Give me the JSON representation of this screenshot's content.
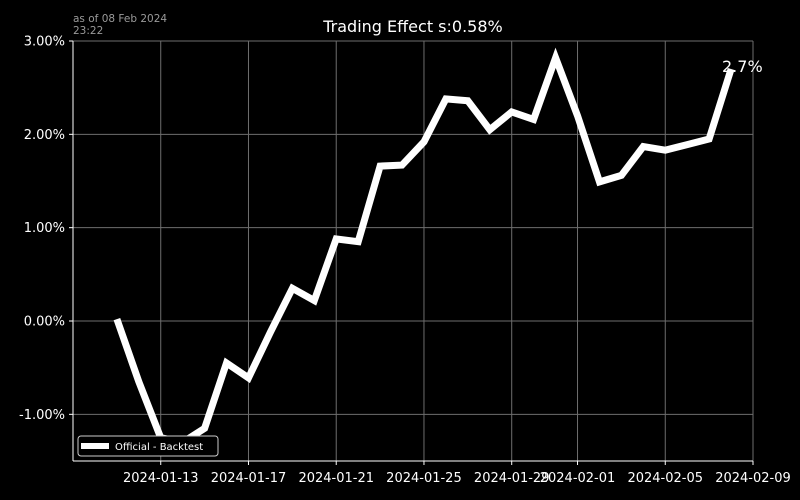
{
  "stamp": {
    "line1": "as of 08 Feb 2024",
    "line2": "23:22"
  },
  "colors": {
    "background": "#000000",
    "line": "#ffffff",
    "grid": "#6e6e6e",
    "text": "#ffffff",
    "stamp": "#9a9a9a"
  },
  "chart_data": {
    "type": "line",
    "title": "Trading Effect s:0.58%",
    "xlabel": "",
    "ylabel": "",
    "xlim": [
      "2024-01-09",
      "2024-02-09"
    ],
    "ylim": [
      -1.5,
      3.0
    ],
    "grid": true,
    "legend_position": "lower-left",
    "y_ticks": [
      {
        "value": -1.0,
        "label": "-1.00%"
      },
      {
        "value": 0.0,
        "label": "0.00%"
      },
      {
        "value": 1.0,
        "label": "1.00%"
      },
      {
        "value": 2.0,
        "label": "2.00%"
      },
      {
        "value": 3.0,
        "label": "3.00%"
      }
    ],
    "x_ticks": [
      {
        "value": "2024-01-13",
        "label": "2024-01-13"
      },
      {
        "value": "2024-01-17",
        "label": "2024-01-17"
      },
      {
        "value": "2024-01-21",
        "label": "2024-01-21"
      },
      {
        "value": "2024-01-25",
        "label": "2024-01-25"
      },
      {
        "value": "2024-01-29",
        "label": "2024-01-29"
      },
      {
        "value": "2024-02-01",
        "label": "2024-02-01"
      },
      {
        "value": "2024-02-05",
        "label": "2024-02-05"
      },
      {
        "value": "2024-02-09",
        "label": "2024-02-09"
      }
    ],
    "series": [
      {
        "name": "Official - Backtest",
        "color": "#ffffff",
        "points": [
          {
            "x": "2024-01-11",
            "y": 0.02
          },
          {
            "x": "2024-01-12",
            "y": -0.65
          },
          {
            "x": "2024-01-13",
            "y": -1.25
          },
          {
            "x": "2024-01-14",
            "y": -1.3
          },
          {
            "x": "2024-01-15",
            "y": -1.15
          },
          {
            "x": "2024-01-16",
            "y": -0.45
          },
          {
            "x": "2024-01-17",
            "y": -0.61
          },
          {
            "x": "2024-01-18",
            "y": -0.12
          },
          {
            "x": "2024-01-19",
            "y": 0.35
          },
          {
            "x": "2024-01-20",
            "y": 0.22
          },
          {
            "x": "2024-01-21",
            "y": 0.88
          },
          {
            "x": "2024-01-22",
            "y": 0.85
          },
          {
            "x": "2024-01-23",
            "y": 1.66
          },
          {
            "x": "2024-01-24",
            "y": 1.67
          },
          {
            "x": "2024-01-25",
            "y": 1.92
          },
          {
            "x": "2024-01-26",
            "y": 2.38
          },
          {
            "x": "2024-01-27",
            "y": 2.36
          },
          {
            "x": "2024-01-28",
            "y": 2.05
          },
          {
            "x": "2024-01-29",
            "y": 2.24
          },
          {
            "x": "2024-01-30",
            "y": 2.16
          },
          {
            "x": "2024-01-31",
            "y": 2.82
          },
          {
            "x": "2024-02-01",
            "y": 2.2
          },
          {
            "x": "2024-02-02",
            "y": 1.49
          },
          {
            "x": "2024-02-03",
            "y": 1.56
          },
          {
            "x": "2024-02-04",
            "y": 1.87
          },
          {
            "x": "2024-02-05",
            "y": 1.83
          },
          {
            "x": "2024-02-06",
            "y": 1.89
          },
          {
            "x": "2024-02-07",
            "y": 1.95
          },
          {
            "x": "2024-02-08",
            "y": 2.7
          }
        ]
      }
    ],
    "end_label": "2.7%"
  }
}
